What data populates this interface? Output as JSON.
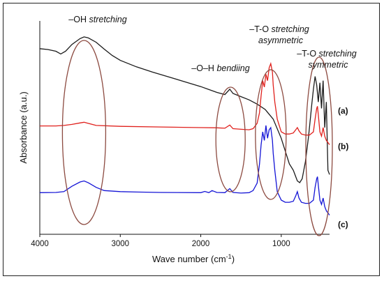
{
  "chart_data": {
    "type": "line",
    "xlabel": "Wave number (cm",
    "xlabel_sup": "-1",
    "xlabel_close": ")",
    "ylabel": "Absorbance (a.u.)",
    "xlim": [
      4000,
      400
    ],
    "x_reversed": true,
    "x_ticks": [
      "4000",
      "3000",
      "2000",
      "1000"
    ],
    "x_tick_values": [
      4000,
      3000,
      2000,
      1000
    ],
    "y_ticks": "none",
    "grid": false,
    "annotations": [
      {
        "prefix": "–OH ",
        "italic": "stretching",
        "line2": "",
        "x": 3450
      },
      {
        "prefix": "–O–H ",
        "italic": "bendiing",
        "line2": "",
        "x": 1630
      },
      {
        "prefix": "–T-O ",
        "italic": "stretching",
        "line2": "asymmetric",
        "x": 1130
      },
      {
        "prefix": "–T-O ",
        "italic": "stretching",
        "line2": "symmetric",
        "x": 530
      }
    ],
    "series": [
      {
        "label": "(a)",
        "color": "#1a1a1a",
        "points": [
          [
            4000,
            0.87
          ],
          [
            3900,
            0.866
          ],
          [
            3800,
            0.858
          ],
          [
            3740,
            0.845
          ],
          [
            3680,
            0.858
          ],
          [
            3600,
            0.89
          ],
          [
            3500,
            0.917
          ],
          [
            3450,
            0.925
          ],
          [
            3400,
            0.921
          ],
          [
            3300,
            0.9
          ],
          [
            3200,
            0.868
          ],
          [
            3100,
            0.838
          ],
          [
            3000,
            0.815
          ],
          [
            2800,
            0.785
          ],
          [
            2600,
            0.76
          ],
          [
            2400,
            0.738
          ],
          [
            2200,
            0.715
          ],
          [
            2000,
            0.692
          ],
          [
            1800,
            0.665
          ],
          [
            1700,
            0.655
          ],
          [
            1640,
            0.68
          ],
          [
            1600,
            0.66
          ],
          [
            1500,
            0.645
          ],
          [
            1400,
            0.63
          ],
          [
            1300,
            0.61
          ],
          [
            1200,
            0.585
          ],
          [
            1100,
            0.54
          ],
          [
            1000,
            0.45
          ],
          [
            950,
            0.39
          ],
          [
            900,
            0.33
          ],
          [
            850,
            0.3
          ],
          [
            800,
            0.25
          ],
          [
            770,
            0.242
          ],
          [
            740,
            0.26
          ],
          [
            700,
            0.34
          ],
          [
            660,
            0.46
          ],
          [
            620,
            0.61
          ],
          [
            600,
            0.68
          ],
          [
            580,
            0.74
          ],
          [
            560,
            0.7
          ],
          [
            540,
            0.62
          ],
          [
            520,
            0.71
          ],
          [
            500,
            0.59
          ],
          [
            480,
            0.72
          ],
          [
            460,
            0.5
          ],
          [
            440,
            0.62
          ],
          [
            420,
            0.3
          ],
          [
            400,
            0.28
          ]
        ]
      },
      {
        "label": "(b)",
        "color": "#e0201c",
        "points": [
          [
            4000,
            0.508
          ],
          [
            3800,
            0.508
          ],
          [
            3700,
            0.51
          ],
          [
            3600,
            0.515
          ],
          [
            3500,
            0.522
          ],
          [
            3450,
            0.525
          ],
          [
            3400,
            0.52
          ],
          [
            3300,
            0.51
          ],
          [
            3000,
            0.506
          ],
          [
            2500,
            0.503
          ],
          [
            2000,
            0.5
          ],
          [
            1800,
            0.499
          ],
          [
            1700,
            0.497
          ],
          [
            1640,
            0.512
          ],
          [
            1600,
            0.495
          ],
          [
            1500,
            0.492
          ],
          [
            1400,
            0.49
          ],
          [
            1350,
            0.495
          ],
          [
            1300,
            0.52
          ],
          [
            1270,
            0.57
          ],
          [
            1250,
            0.65
          ],
          [
            1230,
            0.72
          ],
          [
            1210,
            0.69
          ],
          [
            1190,
            0.75
          ],
          [
            1170,
            0.72
          ],
          [
            1150,
            0.78
          ],
          [
            1130,
            0.8
          ],
          [
            1110,
            0.76
          ],
          [
            1100,
            0.7
          ],
          [
            1080,
            0.62
          ],
          [
            1050,
            0.54
          ],
          [
            1000,
            0.48
          ],
          [
            950,
            0.47
          ],
          [
            900,
            0.47
          ],
          [
            850,
            0.475
          ],
          [
            820,
            0.49
          ],
          [
            800,
            0.5
          ],
          [
            780,
            0.485
          ],
          [
            750,
            0.47
          ],
          [
            700,
            0.465
          ],
          [
            650,
            0.465
          ],
          [
            600,
            0.48
          ],
          [
            580,
            0.54
          ],
          [
            560,
            0.59
          ],
          [
            550,
            0.6
          ],
          [
            540,
            0.56
          ],
          [
            520,
            0.48
          ],
          [
            500,
            0.46
          ],
          [
            480,
            0.5
          ],
          [
            460,
            0.46
          ],
          [
            440,
            0.44
          ],
          [
            420,
            0.43
          ],
          [
            400,
            0.42
          ]
        ]
      },
      {
        "label": "(c)",
        "color": "#1414d6",
        "points": [
          [
            4000,
            0.195
          ],
          [
            3800,
            0.196
          ],
          [
            3700,
            0.2
          ],
          [
            3600,
            0.225
          ],
          [
            3500,
            0.245
          ],
          [
            3450,
            0.25
          ],
          [
            3400,
            0.242
          ],
          [
            3300,
            0.22
          ],
          [
            3200,
            0.205
          ],
          [
            3000,
            0.2
          ],
          [
            2800,
            0.198
          ],
          [
            2500,
            0.196
          ],
          [
            2000,
            0.195
          ],
          [
            1950,
            0.201
          ],
          [
            1900,
            0.195
          ],
          [
            1860,
            0.205
          ],
          [
            1800,
            0.196
          ],
          [
            1700,
            0.195
          ],
          [
            1640,
            0.214
          ],
          [
            1600,
            0.196
          ],
          [
            1500,
            0.193
          ],
          [
            1400,
            0.195
          ],
          [
            1350,
            0.205
          ],
          [
            1300,
            0.24
          ],
          [
            1270,
            0.33
          ],
          [
            1250,
            0.42
          ],
          [
            1230,
            0.48
          ],
          [
            1210,
            0.44
          ],
          [
            1190,
            0.51
          ],
          [
            1170,
            0.45
          ],
          [
            1150,
            0.49
          ],
          [
            1130,
            0.5
          ],
          [
            1110,
            0.44
          ],
          [
            1100,
            0.38
          ],
          [
            1080,
            0.3
          ],
          [
            1050,
            0.2
          ],
          [
            1000,
            0.16
          ],
          [
            950,
            0.15
          ],
          [
            900,
            0.15
          ],
          [
            850,
            0.155
          ],
          [
            820,
            0.18
          ],
          [
            800,
            0.2
          ],
          [
            780,
            0.17
          ],
          [
            750,
            0.15
          ],
          [
            700,
            0.145
          ],
          [
            650,
            0.145
          ],
          [
            600,
            0.16
          ],
          [
            580,
            0.22
          ],
          [
            560,
            0.26
          ],
          [
            550,
            0.27
          ],
          [
            540,
            0.23
          ],
          [
            520,
            0.16
          ],
          [
            500,
            0.14
          ],
          [
            480,
            0.17
          ],
          [
            460,
            0.13
          ],
          [
            440,
            0.11
          ],
          [
            420,
            0.1
          ],
          [
            400,
            0.09
          ]
        ]
      }
    ]
  }
}
